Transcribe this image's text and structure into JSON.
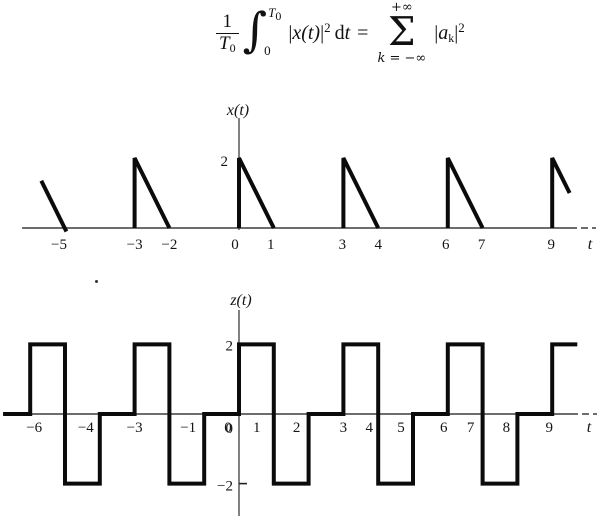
{
  "formula": {
    "text": "(1/T0) ∫0^T0 |x(t)|^2 dt = ∑ k=-∞..+∞ |a_k|^2",
    "numerator": "1",
    "denominator_base": "T",
    "denominator_sub": "0",
    "integral_sign": "∫",
    "upper_limit_base": "T",
    "upper_limit_sub": "0",
    "lower_limit": "0",
    "bar_open": "|",
    "integrand_var": "x(t)",
    "bar_close": "|",
    "integrand_power": "2",
    "differential_d": "d",
    "differential_var": "t",
    "equals": "=",
    "sum_upper": "+∞",
    "sigma": "Σ",
    "sum_lower": "k = −∞",
    "result_bar_open": "|",
    "result_base": "a",
    "result_sub": "k",
    "result_bar_close": "|",
    "result_power": "2"
  },
  "chart_data": [
    {
      "type": "line",
      "title": "x(t)",
      "ylabel": "x(t)",
      "xlabel": "t",
      "xlim": [
        -6.2,
        9.7
      ],
      "ylim": [
        0,
        3.1
      ],
      "grid": false,
      "period": 3,
      "description": "Periodic triangular pulses: vertical rise to 2 at t = 3k, linear decay to 0 at t = 3k+1",
      "segments": [
        [
          [
            -5.68,
            1.35
          ],
          [
            -4.96,
            -0.1
          ]
        ],
        [
          [
            -3,
            0
          ],
          [
            -3,
            2
          ],
          [
            -2,
            0
          ]
        ],
        [
          [
            0,
            0
          ],
          [
            0,
            2
          ],
          [
            1,
            0
          ]
        ],
        [
          [
            3,
            0
          ],
          [
            3,
            2
          ],
          [
            4,
            0
          ]
        ],
        [
          [
            6,
            0
          ],
          [
            6,
            2
          ],
          [
            7,
            0
          ]
        ],
        [
          [
            9,
            0
          ],
          [
            9,
            2
          ],
          [
            9.5,
            1.0
          ]
        ]
      ],
      "x_ticks": [
        {
          "label": "−5",
          "t": -5,
          "dx": -6
        },
        {
          "label": "−3",
          "t": -3,
          "dx": 0
        },
        {
          "label": "−2",
          "t": -2,
          "dx": 0
        },
        {
          "label": "0",
          "t": 0,
          "dx": -4
        },
        {
          "label": "1",
          "t": 1,
          "dx": -3
        },
        {
          "label": "3",
          "t": 3,
          "dx": -1
        },
        {
          "label": "4",
          "t": 4,
          "dx": 0
        },
        {
          "label": "6",
          "t": 6,
          "dx": -2
        },
        {
          "label": "7",
          "t": 7,
          "dx": -1
        },
        {
          "label": "9",
          "t": 9,
          "dx": -1
        }
      ],
      "value_labels": [
        {
          "label": "2",
          "v": 2,
          "dy": 8
        }
      ],
      "y_ticks": []
    },
    {
      "type": "line",
      "title": "z(t)",
      "ylabel": "z(t)",
      "xlabel": "t",
      "xlim": [
        -6.8,
        9.75
      ],
      "ylim": [
        -3,
        3.1
      ],
      "grid": false,
      "period": 3,
      "description": "Periodic square wave: +2 on [3k,3k+1], -2 on [3k+1,3k+2], 0 on [3k+2,3k+3]",
      "segments": [
        [
          [
            -6.78,
            0
          ],
          [
            -6,
            0
          ],
          [
            -6,
            2
          ],
          [
            -5,
            2
          ],
          [
            -5,
            -2
          ],
          [
            -4,
            -2
          ],
          [
            -4,
            0
          ],
          [
            -3,
            0
          ],
          [
            -3,
            2
          ],
          [
            -2,
            2
          ],
          [
            -2,
            -2
          ],
          [
            -1,
            -2
          ],
          [
            -1,
            0
          ],
          [
            0,
            0
          ],
          [
            0,
            2
          ],
          [
            1,
            2
          ],
          [
            1,
            -2
          ],
          [
            2,
            -2
          ],
          [
            2,
            0
          ],
          [
            3,
            0
          ],
          [
            3,
            2
          ],
          [
            4,
            2
          ],
          [
            4,
            -2
          ],
          [
            5,
            -2
          ],
          [
            5,
            0
          ],
          [
            6,
            0
          ],
          [
            6,
            2
          ],
          [
            7,
            2
          ],
          [
            7,
            -2
          ],
          [
            8,
            -2
          ],
          [
            8,
            0
          ],
          [
            9,
            0
          ],
          [
            9,
            2
          ],
          [
            9.72,
            2
          ]
        ]
      ],
      "x_ticks": [
        {
          "label": "−6",
          "t": -6,
          "dx": 4
        },
        {
          "label": "−4",
          "t": -4,
          "dx": -14
        },
        {
          "label": "−3",
          "t": -3,
          "dx": 0
        },
        {
          "label": "−1",
          "t": -1,
          "dx": -16
        },
        {
          "label": "0",
          "t": 0,
          "dx": -11
        },
        {
          "label": "1",
          "t": 1,
          "dx": -17
        },
        {
          "label": "2",
          "t": 2,
          "dx": -12
        },
        {
          "label": "3",
          "t": 3,
          "dx": 0
        },
        {
          "label": "4",
          "t": 4,
          "dx": -9
        },
        {
          "label": "5",
          "t": 5,
          "dx": -12
        },
        {
          "label": "6",
          "t": 6,
          "dx": -4
        },
        {
          "label": "7",
          "t": 7,
          "dx": -12
        },
        {
          "label": "8",
          "t": 8,
          "dx": -11
        },
        {
          "label": "9",
          "t": 9,
          "dx": -3
        }
      ],
      "value_labels": [
        {
          "label": "2",
          "v": 2,
          "dy": 6
        },
        {
          "label": "0",
          "v": 0,
          "dy": 19
        },
        {
          "label": "−2",
          "v": -2,
          "dy": 7
        }
      ],
      "y_ticks": [
        {
          "v": -2
        }
      ]
    }
  ]
}
